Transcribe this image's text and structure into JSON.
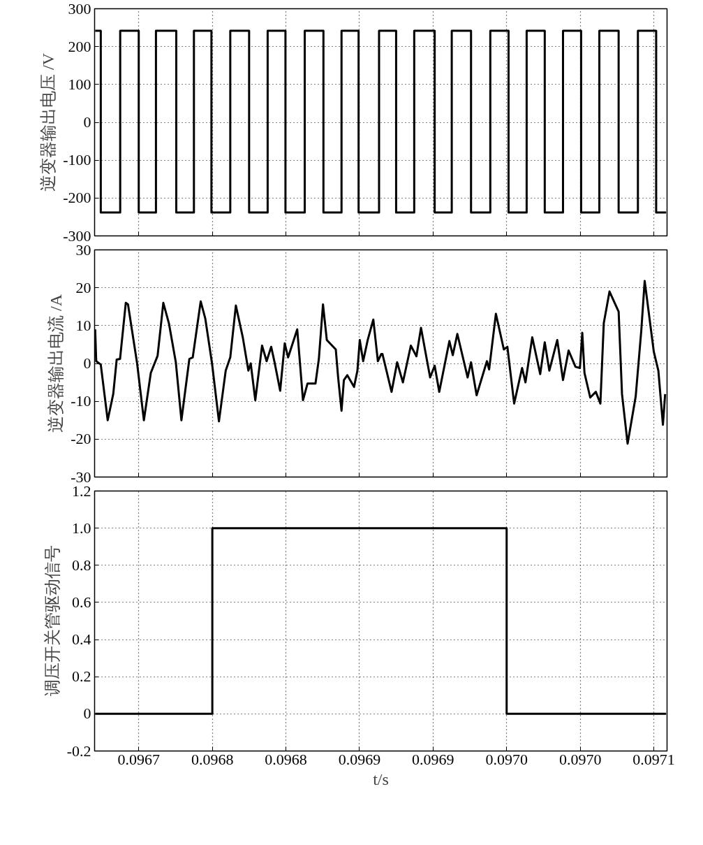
{
  "chart_data": [
    {
      "type": "step",
      "ylabel": "逆变器输出电压 /V",
      "color": "#000000",
      "grid": true,
      "tick_labels": "y",
      "x": [
        0.0966704,
        0.0966742,
        0.0966874,
        0.0967,
        0.0967117,
        0.0967255,
        0.0967375,
        0.0967494,
        0.0967622,
        0.096775,
        0.0967876,
        0.0967997,
        0.0968128,
        0.0968255,
        0.0968378,
        0.0968494,
        0.0968633,
        0.0968749,
        0.0968872,
        0.0969011,
        0.0969127,
        0.0969258,
        0.0969389,
        0.0969513,
        0.0969636,
        0.0969759,
        0.0969883,
        0.0970006,
        0.097013,
        0.0970261,
        0.0970392,
        0.0970516,
        0.0970584
      ],
      "values": [
        242,
        -238,
        242,
        -238,
        242,
        -238,
        242,
        -238,
        242,
        -238,
        242,
        -238,
        242,
        -238,
        242,
        -238,
        242,
        -238,
        242,
        -238,
        242,
        -238,
        242,
        -238,
        242,
        -238,
        242,
        -238,
        242,
        -238,
        242,
        -238,
        -238
      ],
      "xlim": [
        0.09667,
        0.097059
      ],
      "ylim": [
        -300,
        300
      ],
      "xticks": [
        {
          "value": 0.0967,
          "label": null
        },
        {
          "value": 0.09675,
          "label": null
        },
        {
          "value": 0.0968,
          "label": null
        },
        {
          "value": 0.09685,
          "label": null
        },
        {
          "value": 0.0969,
          "label": null
        },
        {
          "value": 0.09695,
          "label": null
        },
        {
          "value": 0.097,
          "label": null
        },
        {
          "value": 0.09705,
          "label": null
        }
      ],
      "yticks": [
        -300,
        -200,
        -100,
        0,
        100,
        200,
        300
      ]
    },
    {
      "type": "line",
      "ylabel": "逆变器输出电流 /A",
      "color": "#000000",
      "grid": true,
      "tick_labels": "y",
      "x": [
        0.0966704,
        0.0966711,
        0.0966742,
        0.0966789,
        0.0966827,
        0.096685,
        0.0966873,
        0.0966912,
        0.0966927,
        0.0966989,
        0.0967035,
        0.0967082,
        0.0967128,
        0.0967167,
        0.0967205,
        0.0967252,
        0.096729,
        0.0967344,
        0.0967367,
        0.0967421,
        0.0967452,
        0.0967498,
        0.0967545,
        0.0967591,
        0.0967622,
        0.096766,
        0.0967707,
        0.0967745,
        0.0967761,
        0.0967792,
        0.0967838,
        0.0967869,
        0.09679,
        0.0967923,
        0.0967961,
        0.0967992,
        0.0968015,
        0.0968077,
        0.0968116,
        0.0968147,
        0.0968201,
        0.0968224,
        0.0968252,
        0.0968278,
        0.0968339,
        0.0968355,
        0.0968378,
        0.0968394,
        0.0968417,
        0.0968463,
        0.0968486,
        0.0968502,
        0.0968525,
        0.0968556,
        0.0968594,
        0.0968625,
        0.0968648,
        0.0968656,
        0.0968718,
        0.0968756,
        0.0968795,
        0.0968849,
        0.0968887,
        0.0968918,
        0.096898,
        0.0969011,
        0.0969042,
        0.0969111,
        0.0969134,
        0.0969165,
        0.0969235,
        0.0969258,
        0.0969296,
        0.0969366,
        0.0969381,
        0.0969427,
        0.0969481,
        0.0969505,
        0.0969551,
        0.0969605,
        0.0969628,
        0.0969674,
        0.0969728,
        0.0969759,
        0.096979,
        0.0969844,
        0.0969883,
        0.0969921,
        0.0969968,
        0.0969998,
        0.0970014,
        0.0970029,
        0.0970068,
        0.0970106,
        0.0970137,
        0.097016,
        0.0970199,
        0.0970261,
        0.0970284,
        0.0970322,
        0.0970377,
        0.0970415,
        0.0970438,
        0.09705,
        0.0970531,
        0.0970562,
        0.0970577
      ],
      "values": [
        9,
        0.6,
        -0.3,
        -15,
        -8,
        1,
        1.2,
        16,
        15.6,
        0,
        -15,
        -2.5,
        2,
        16,
        10.6,
        0.3,
        -15,
        1.2,
        1.6,
        16.4,
        11.9,
        0,
        -15.3,
        -1.9,
        1.6,
        15.3,
        6.9,
        -1.9,
        0,
        -9.7,
        4.7,
        0.6,
        4.4,
        0.3,
        -7.2,
        5.3,
        1.6,
        9,
        -9.7,
        -5.3,
        -5.3,
        1.2,
        15.6,
        6.2,
        3.7,
        -3.7,
        -12.5,
        -4.4,
        -3.1,
        -6.2,
        -1.9,
        6.2,
        0.6,
        6.2,
        11.6,
        0.6,
        2.5,
        2.5,
        -7.5,
        0.3,
        -5,
        4.7,
        1.9,
        9.4,
        -3.7,
        -0.6,
        -7.5,
        5.9,
        2.2,
        7.8,
        -3.7,
        0.3,
        -8.4,
        0.6,
        -1.6,
        13.1,
        3.7,
        4.4,
        -10.6,
        -1.2,
        -5,
        6.9,
        -2.8,
        5.6,
        -1.9,
        6.2,
        -4.4,
        3.4,
        -0.9,
        -1.2,
        8.1,
        -2.5,
        -9,
        -7.5,
        -10.6,
        10.6,
        19,
        13.7,
        -8.1,
        -21.2,
        -8.7,
        8.7,
        21.8,
        3.1,
        -1.9,
        -16.2,
        -8.1
      ],
      "xlim": [
        0.09667,
        0.097059
      ],
      "ylim": [
        -30,
        30
      ],
      "xticks": [
        {
          "value": 0.0967,
          "label": null
        },
        {
          "value": 0.09675,
          "label": null
        },
        {
          "value": 0.0968,
          "label": null
        },
        {
          "value": 0.09685,
          "label": null
        },
        {
          "value": 0.0969,
          "label": null
        },
        {
          "value": 0.09695,
          "label": null
        },
        {
          "value": 0.097,
          "label": null
        },
        {
          "value": 0.09705,
          "label": null
        }
      ],
      "yticks": [
        -30,
        -20,
        -10,
        0,
        10,
        20,
        30
      ]
    },
    {
      "type": "step",
      "ylabel": "调压开关管驱动信号",
      "xlabel": "t/s",
      "color": "#000000",
      "grid": true,
      "x": [
        0.0966704,
        0.09675,
        0.09695,
        0.0970584
      ],
      "values": [
        0,
        1,
        0,
        0
      ],
      "xlim": [
        0.09667,
        0.097059
      ],
      "ylim": [
        -0.2,
        1.2
      ],
      "xticks": [
        {
          "value": 0.0967,
          "label": "0.0967"
        },
        {
          "value": 0.09675,
          "label": "0.0968"
        },
        {
          "value": 0.0968,
          "label": "0.0968"
        },
        {
          "value": 0.09685,
          "label": "0.0969"
        },
        {
          "value": 0.0969,
          "label": "0.0969"
        },
        {
          "value": 0.09695,
          "label": "0.0970"
        },
        {
          "value": 0.097,
          "label": "0.0970"
        },
        {
          "value": 0.09705,
          "label": "0.0971"
        }
      ],
      "yticks": [
        -0.2,
        0,
        0.2,
        0.4,
        0.6,
        0.8,
        {
          "value": 1,
          "label": "1.0"
        },
        1.2
      ]
    }
  ]
}
